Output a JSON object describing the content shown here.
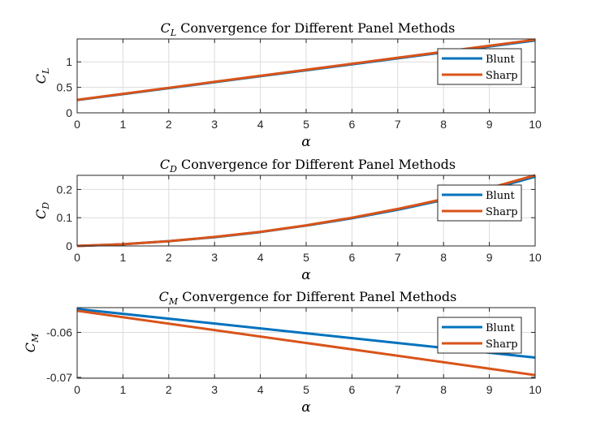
{
  "chart_data": [
    {
      "type": "line",
      "title_main": "C",
      "title_sub": "L",
      "title_rest": " Convergence for Different Panel Methods",
      "ylabel_main": "C",
      "ylabel_sub": "L",
      "xlabel": "α",
      "xlim": [
        0,
        10
      ],
      "ylim": [
        0,
        1.45
      ],
      "xticks": [
        "0",
        "1",
        "2",
        "3",
        "4",
        "5",
        "6",
        "7",
        "8",
        "9",
        "10"
      ],
      "yticks": [
        {
          "v": 0,
          "label": "0"
        },
        {
          "v": 0.5,
          "label": "0.5"
        },
        {
          "v": 1,
          "label": "1"
        }
      ],
      "grid": true,
      "legend_position": "top-right",
      "series": [
        {
          "name": "Blunt",
          "color": "#0072BD",
          "x": [
            0,
            1,
            2,
            3,
            4,
            5,
            6,
            7,
            8,
            9,
            10
          ],
          "y": [
            0.25,
            0.367,
            0.484,
            0.601,
            0.718,
            0.835,
            0.952,
            1.069,
            1.186,
            1.303,
            1.42
          ]
        },
        {
          "name": "Sharp",
          "color": "#D95319",
          "x": [
            0,
            1,
            2,
            3,
            4,
            5,
            6,
            7,
            8,
            9,
            10
          ],
          "y": [
            0.255,
            0.373,
            0.491,
            0.609,
            0.727,
            0.845,
            0.963,
            1.081,
            1.199,
            1.317,
            1.435
          ]
        }
      ]
    },
    {
      "type": "line",
      "title_main": "C",
      "title_sub": "D",
      "title_rest": " Convergence for Different Panel Methods",
      "ylabel_main": "C",
      "ylabel_sub": "D",
      "xlabel": "α",
      "xlim": [
        0,
        10
      ],
      "ylim": [
        0,
        0.25
      ],
      "xticks": [
        "0",
        "1",
        "2",
        "3",
        "4",
        "5",
        "6",
        "7",
        "8",
        "9",
        "10"
      ],
      "yticks": [
        {
          "v": 0,
          "label": "0"
        },
        {
          "v": 0.1,
          "label": "0.1"
        },
        {
          "v": 0.2,
          "label": "0.2"
        }
      ],
      "grid": true,
      "legend_position": "top-right",
      "series": [
        {
          "name": "Blunt",
          "color": "#0072BD",
          "x": [
            0,
            1,
            2,
            3,
            4,
            5,
            6,
            7,
            8,
            9,
            10
          ],
          "y": [
            0.0,
            0.006,
            0.017,
            0.031,
            0.049,
            0.072,
            0.098,
            0.128,
            0.163,
            0.2,
            0.245
          ]
        },
        {
          "name": "Sharp",
          "color": "#D95319",
          "x": [
            0,
            1,
            2,
            3,
            4,
            5,
            6,
            7,
            8,
            9,
            10
          ],
          "y": [
            0.0,
            0.006,
            0.017,
            0.032,
            0.05,
            0.073,
            0.1,
            0.131,
            0.166,
            0.205,
            0.25
          ]
        }
      ]
    },
    {
      "type": "line",
      "title_main": "C",
      "title_sub": "M",
      "title_rest": " Convergence for Different Panel Methods",
      "ylabel_main": "C",
      "ylabel_sub": "M",
      "xlabel": "α",
      "xlim": [
        0,
        10
      ],
      "ylim": [
        -0.0702,
        -0.0545
      ],
      "xticks": [
        "0",
        "1",
        "2",
        "3",
        "4",
        "5",
        "6",
        "7",
        "8",
        "9",
        "10"
      ],
      "yticks": [
        {
          "v": -0.07,
          "label": "-0.07"
        },
        {
          "v": -0.06,
          "label": "-0.06"
        }
      ],
      "grid": true,
      "legend_position": "top-right",
      "series": [
        {
          "name": "Blunt",
          "color": "#0072BD",
          "x": [
            0,
            10
          ],
          "y": [
            -0.0548,
            -0.0656
          ]
        },
        {
          "name": "Sharp",
          "color": "#D95319",
          "x": [
            0,
            10
          ],
          "y": [
            -0.0552,
            -0.0695
          ]
        }
      ]
    }
  ]
}
